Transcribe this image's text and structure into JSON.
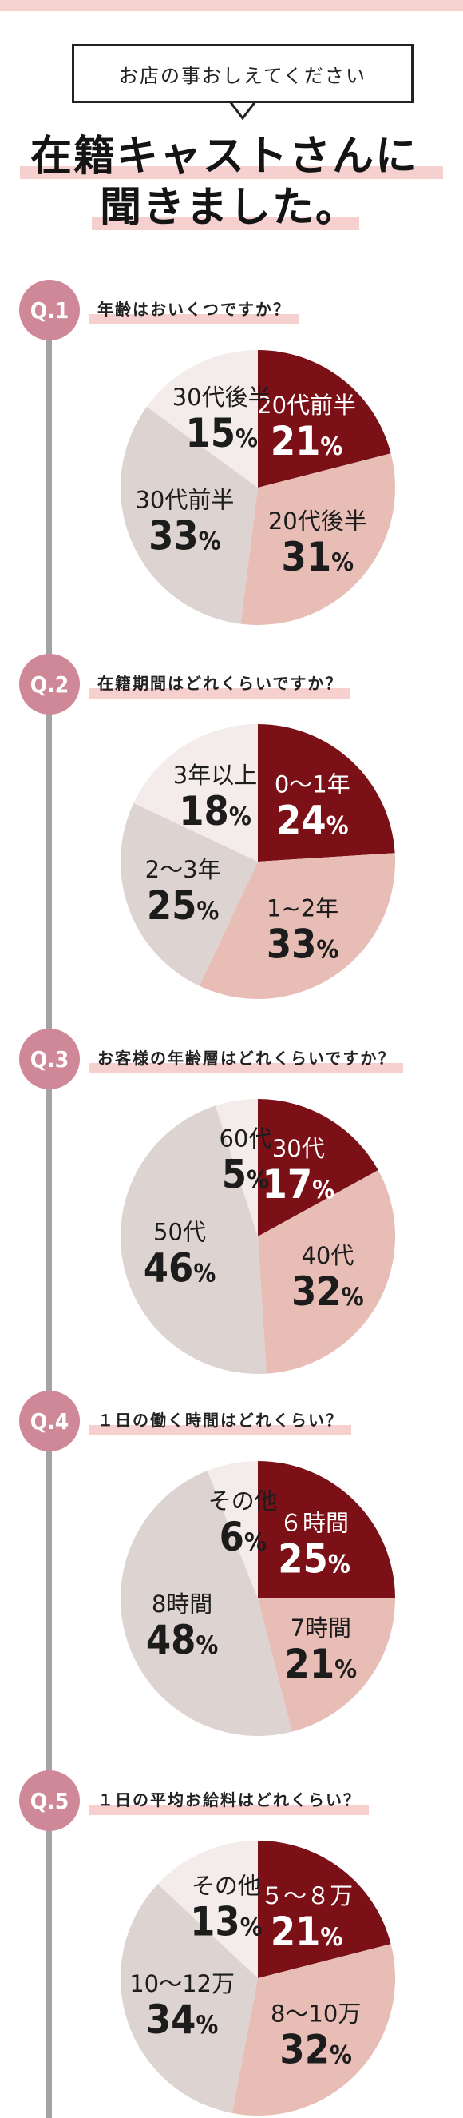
{
  "header": {
    "bubble_text": "お店の事おしえてください",
    "headline_line1": "在籍キャストさんに",
    "headline_line2": "聞きました。"
  },
  "colors": {
    "dark_red": "#7b1017",
    "pink": "#e8bdb5",
    "beige": "#ddd3d0",
    "light_beige": "#f3ecea",
    "badge": "#cf8898",
    "highlight": "#f6d0cf"
  },
  "chart_data": [
    {
      "type": "pie",
      "badge": "Q.1",
      "title": "年齢はおいくつですか？",
      "categories": [
        "20代前半",
        "20代後半",
        "30代前半",
        "30代後半"
      ],
      "values": [
        21,
        31,
        33,
        15
      ],
      "colors": [
        "#7b1017",
        "#e8bdb5",
        "#ddd3d0",
        "#f3ecea"
      ],
      "label_dark": [
        false,
        true,
        true,
        true
      ],
      "unit": "%"
    },
    {
      "type": "pie",
      "badge": "Q.2",
      "title": "在籍期間はどれくらいですか？",
      "categories": [
        "0～1年",
        "1~2年",
        "2～3年",
        "3年以上"
      ],
      "values": [
        24,
        33,
        25,
        18
      ],
      "colors": [
        "#7b1017",
        "#e8bdb5",
        "#ddd3d0",
        "#f3ecea"
      ],
      "label_dark": [
        false,
        true,
        true,
        true
      ],
      "unit": "%"
    },
    {
      "type": "pie",
      "badge": "Q.3",
      "title": "お客様の年齢層はどれくらいですか？",
      "categories": [
        "30代",
        "40代",
        "50代",
        "60代"
      ],
      "values": [
        17,
        32,
        46,
        5
      ],
      "colors": [
        "#7b1017",
        "#e8bdb5",
        "#ddd3d0",
        "#f3ecea"
      ],
      "label_dark": [
        false,
        true,
        true,
        true
      ],
      "unit": "%"
    },
    {
      "type": "pie",
      "badge": "Q.4",
      "title": "１日の働く時間はどれくらい？",
      "categories": [
        "６時間",
        "7時間",
        "8時間",
        "その他"
      ],
      "values": [
        25,
        21,
        48,
        6
      ],
      "colors": [
        "#7b1017",
        "#e8bdb5",
        "#ddd3d0",
        "#f3ecea"
      ],
      "label_dark": [
        false,
        true,
        true,
        true
      ],
      "unit": "%"
    },
    {
      "type": "pie",
      "badge": "Q.5",
      "title": "１日の平均お給料はどれくらい？",
      "categories": [
        "５～８万",
        "8～10万",
        "10～12万",
        "その他"
      ],
      "values": [
        21,
        32,
        34,
        13
      ],
      "colors": [
        "#7b1017",
        "#e8bdb5",
        "#ddd3d0",
        "#f3ecea"
      ],
      "label_dark": [
        false,
        true,
        true,
        true
      ],
      "unit": "%"
    }
  ]
}
